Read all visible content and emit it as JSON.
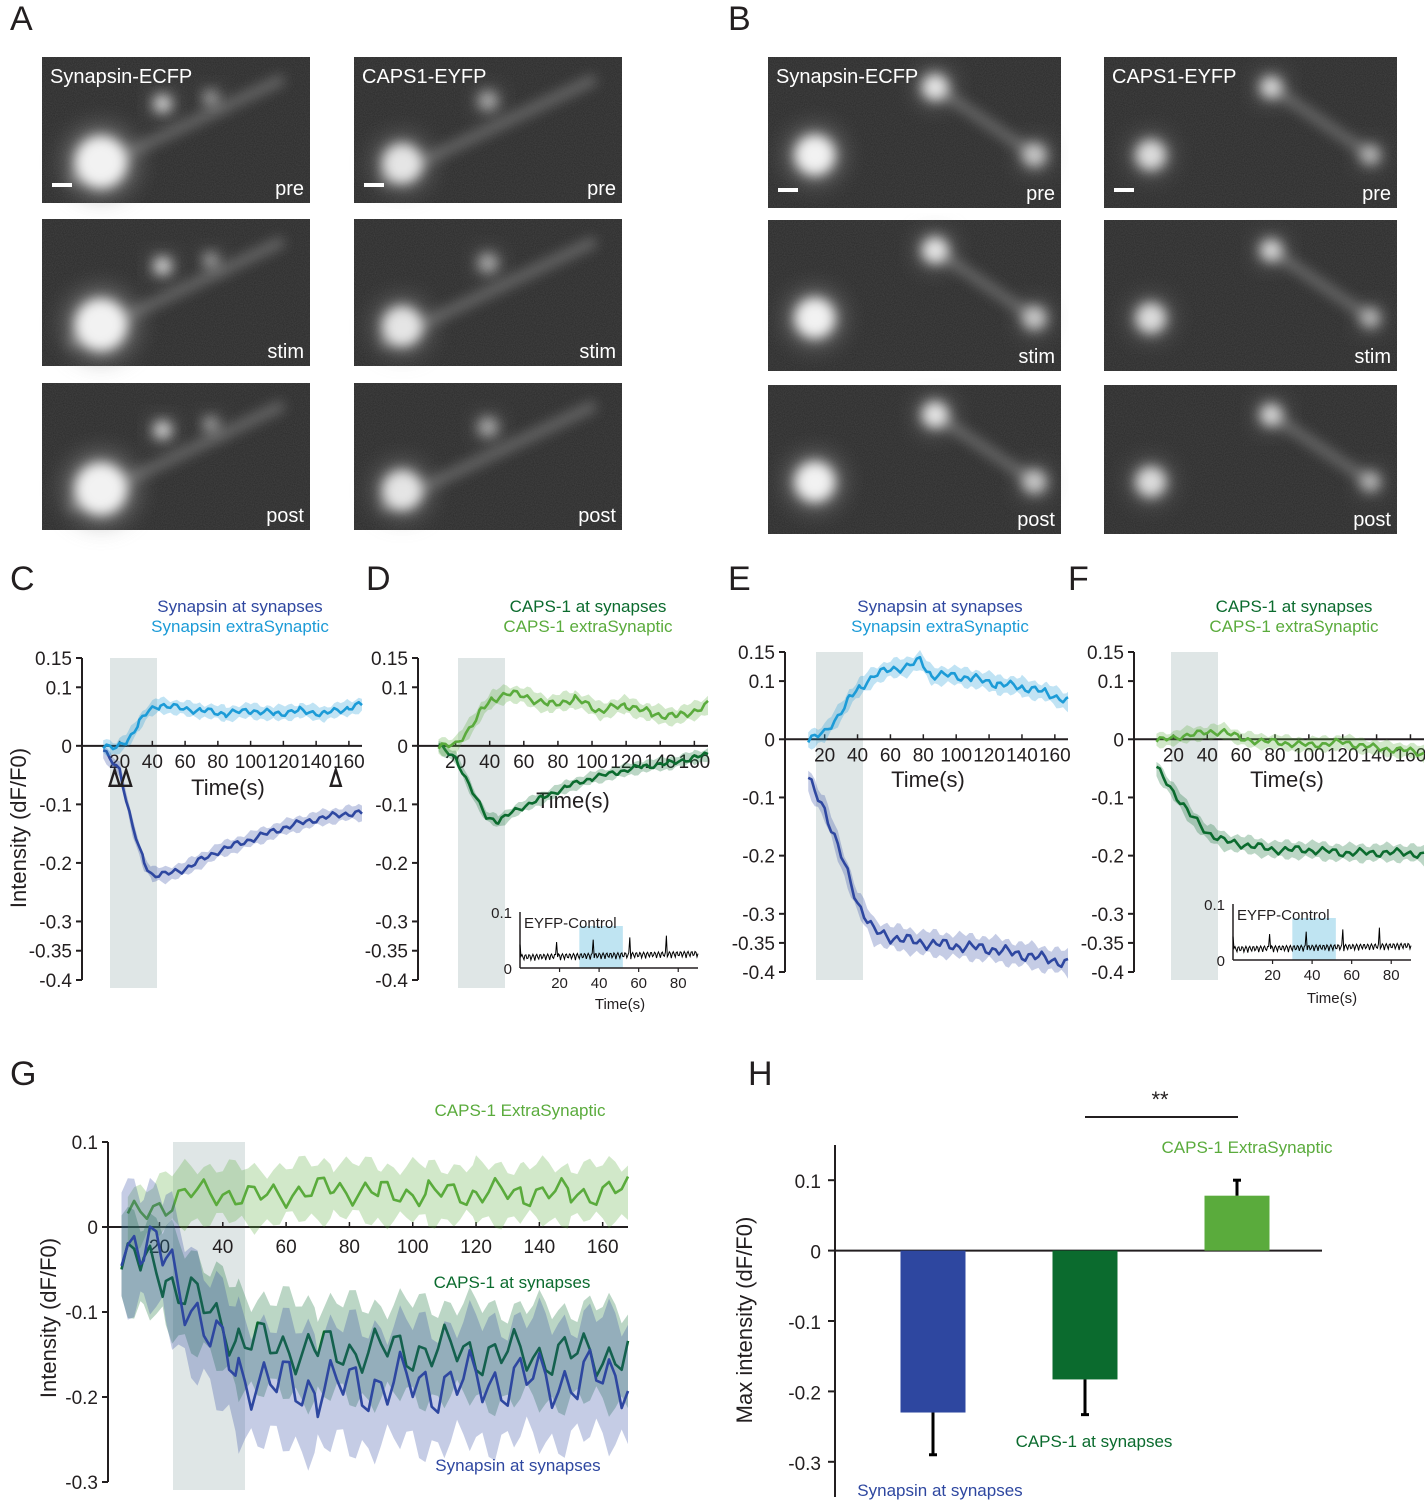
{
  "panel_letters": [
    "A",
    "B",
    "C",
    "D",
    "E",
    "F",
    "G",
    "H"
  ],
  "colors": {
    "syn_at": "#2e47a0",
    "syn_extra": "#1c9bd7",
    "caps_at": "#0b6b2e",
    "caps_extra": "#5aab3c",
    "stim_shade": "#dfe6e6",
    "eyfp_shade": "#bfe4f2",
    "axis": "#231f20"
  },
  "micrographs": {
    "A": {
      "col1_title": "Synapsin-ECFP",
      "col2_title": "CAPS1-EYFP",
      "row_labels": [
        "pre",
        "stim",
        "post"
      ]
    },
    "B": {
      "col1_title": "Synapsin-ECFP",
      "col2_title": "CAPS1-EYFP",
      "row_labels": [
        "pre",
        "stim",
        "post"
      ]
    }
  },
  "chart_data": [
    {
      "panel": "C",
      "type": "line",
      "xlabel": "Time(s)",
      "ylabel": "Intensity (dF/F0)",
      "xlim": [
        5,
        168
      ],
      "ylim": [
        -0.4,
        0.15
      ],
      "xticks": [
        20,
        40,
        60,
        80,
        100,
        120,
        140,
        160
      ],
      "yticks": [
        0.15,
        0.1,
        0,
        -0.1,
        -0.2,
        -0.3,
        -0.35,
        -0.4
      ],
      "stim_window": [
        20,
        48
      ],
      "arrowheads_at": [
        17,
        24,
        152
      ],
      "legend": [
        "Synapsin at synapses",
        "Synapsin extraSynaptic"
      ],
      "series": [
        {
          "name": "Synapsin at synapses",
          "color_key": "syn_at",
          "x": [
            10,
            20,
            28,
            35,
            40,
            48,
            60,
            80,
            100,
            120,
            140,
            160,
            168
          ],
          "y": [
            -0.01,
            -0.04,
            -0.14,
            -0.2,
            -0.22,
            -0.22,
            -0.21,
            -0.18,
            -0.16,
            -0.14,
            -0.125,
            -0.115,
            -0.115
          ],
          "band": 0.012
        },
        {
          "name": "Synapsin extraSynaptic",
          "color_key": "syn_extra",
          "x": [
            10,
            18,
            25,
            32,
            38,
            45,
            55,
            70,
            85,
            100,
            115,
            130,
            145,
            160,
            168
          ],
          "y": [
            0.0,
            -0.005,
            0.01,
            0.04,
            0.06,
            0.07,
            0.065,
            0.06,
            0.055,
            0.06,
            0.055,
            0.06,
            0.055,
            0.065,
            0.07
          ],
          "band": 0.012
        }
      ]
    },
    {
      "panel": "D",
      "type": "line",
      "xlabel": "Time(s)",
      "ylabel": "",
      "xlim": [
        5,
        168
      ],
      "ylim": [
        -0.4,
        0.15
      ],
      "xticks": [
        20,
        40,
        60,
        80,
        100,
        120,
        140,
        160
      ],
      "yticks": [
        0.15,
        0.1,
        0,
        -0.1,
        -0.2,
        -0.3,
        -0.35,
        -0.4
      ],
      "stim_window": [
        20,
        48
      ],
      "legend": [
        "CAPS-1 at synapses",
        "CAPS-1 extraSynaptic"
      ],
      "series": [
        {
          "name": "CAPS-1 at synapses",
          "color_key": "caps_at",
          "x": [
            10,
            20,
            30,
            38,
            45,
            55,
            70,
            85,
            100,
            115,
            130,
            145,
            160,
            168
          ],
          "y": [
            0.0,
            -0.02,
            -0.08,
            -0.12,
            -0.13,
            -0.11,
            -0.09,
            -0.07,
            -0.055,
            -0.045,
            -0.035,
            -0.03,
            -0.02,
            -0.015
          ],
          "band": 0.01
        },
        {
          "name": "CAPS-1 extraSynaptic",
          "color_key": "caps_extra",
          "x": [
            10,
            20,
            28,
            35,
            42,
            50,
            60,
            75,
            90,
            105,
            120,
            135,
            150,
            160,
            168
          ],
          "y": [
            0.0,
            0.0,
            0.03,
            0.06,
            0.08,
            0.09,
            0.085,
            0.07,
            0.08,
            0.06,
            0.07,
            0.055,
            0.05,
            0.06,
            0.07
          ],
          "band": 0.014
        }
      ],
      "inset": {
        "label": "EYFP-Control",
        "xlabel": "Time(s)",
        "xlim": [
          0,
          90
        ],
        "ylim": [
          0,
          0.1
        ],
        "xticks": [
          20,
          40,
          60,
          80
        ],
        "yticks": [
          0,
          0.1
        ],
        "shade": [
          30,
          52
        ]
      }
    },
    {
      "panel": "E",
      "type": "line",
      "xlabel": "Time(s)",
      "ylabel": "",
      "xlim": [
        5,
        168
      ],
      "ylim": [
        -0.4,
        0.15
      ],
      "xticks": [
        20,
        40,
        60,
        80,
        100,
        120,
        140,
        160
      ],
      "yticks": [
        0.15,
        0.1,
        0,
        -0.1,
        -0.2,
        -0.3,
        -0.35,
        -0.4
      ],
      "stim_window": [
        20,
        48
      ],
      "legend": [
        "Synapsin at synapses",
        "Synapsin extraSynaptic"
      ],
      "series": [
        {
          "name": "Synapsin at synapses",
          "color_key": "syn_at",
          "x": [
            10,
            20,
            30,
            40,
            50,
            60,
            80,
            100,
            120,
            140,
            160,
            168
          ],
          "y": [
            -0.07,
            -0.12,
            -0.2,
            -0.28,
            -0.33,
            -0.34,
            -0.35,
            -0.355,
            -0.36,
            -0.37,
            -0.38,
            -0.385
          ],
          "band": 0.02
        },
        {
          "name": "Synapsin extraSynaptic",
          "color_key": "syn_extra",
          "x": [
            10,
            20,
            28,
            35,
            42,
            50,
            60,
            70,
            78,
            85,
            95,
            110,
            125,
            140,
            155,
            168
          ],
          "y": [
            0.0,
            0.01,
            0.04,
            0.07,
            0.09,
            0.11,
            0.12,
            0.125,
            0.135,
            0.11,
            0.11,
            0.105,
            0.095,
            0.09,
            0.08,
            0.065
          ],
          "band": 0.015
        }
      ]
    },
    {
      "panel": "F",
      "type": "line",
      "xlabel": "Time(s)",
      "ylabel": "",
      "xlim": [
        5,
        168
      ],
      "ylim": [
        -0.4,
        0.15
      ],
      "xticks": [
        20,
        40,
        60,
        80,
        100,
        120,
        140,
        160
      ],
      "yticks": [
        0.15,
        0.1,
        0,
        -0.1,
        -0.2,
        -0.3,
        -0.35,
        -0.4
      ],
      "stim_window": [
        20,
        48
      ],
      "legend": [
        "CAPS-1 at synapses",
        "CAPS-1 extraSynaptic"
      ],
      "series": [
        {
          "name": "CAPS-1 at synapses",
          "color_key": "caps_at",
          "x": [
            10,
            20,
            30,
            40,
            50,
            60,
            80,
            100,
            120,
            140,
            160,
            168
          ],
          "y": [
            -0.05,
            -0.09,
            -0.13,
            -0.16,
            -0.175,
            -0.18,
            -0.19,
            -0.19,
            -0.195,
            -0.195,
            -0.195,
            -0.2
          ],
          "band": 0.014
        },
        {
          "name": "CAPS-1 extraSynaptic",
          "color_key": "caps_extra",
          "x": [
            10,
            20,
            30,
            40,
            50,
            60,
            80,
            100,
            120,
            140,
            160,
            168
          ],
          "y": [
            0.0,
            0.0,
            0.01,
            0.01,
            0.015,
            0.0,
            -0.005,
            -0.01,
            -0.005,
            -0.015,
            -0.02,
            -0.025
          ],
          "band": 0.012
        }
      ],
      "inset": {
        "label": "EYFP-Control",
        "xlabel": "Time(s)",
        "xlim": [
          0,
          90
        ],
        "ylim": [
          0,
          0.1
        ],
        "xticks": [
          20,
          40,
          60,
          80
        ],
        "yticks": [
          0,
          0.1
        ],
        "shade": [
          30,
          52
        ]
      }
    },
    {
      "panel": "G",
      "type": "line",
      "xlabel": "",
      "ylabel": "Intensity (dF/F0)",
      "xlim": [
        5,
        168
      ],
      "ylim": [
        -0.3,
        0.1
      ],
      "xticks": [
        20,
        40,
        60,
        80,
        100,
        120,
        140,
        160
      ],
      "yticks": [
        0.1,
        0,
        -0.1,
        -0.2,
        -0.3
      ],
      "stim_window": [
        20,
        44
      ],
      "series": [
        {
          "name": "CAPS-1 ExtraSynaptic",
          "color_key": "caps_extra",
          "x": [
            10,
            20,
            30,
            40,
            50,
            60,
            75,
            90,
            105,
            120,
            135,
            150,
            160,
            168
          ],
          "y": [
            0.01,
            0.025,
            0.04,
            0.04,
            0.035,
            0.04,
            0.045,
            0.04,
            0.04,
            0.04,
            0.04,
            0.04,
            0.04,
            0.045
          ],
          "band": 0.032
        },
        {
          "name": "CAPS-1 at synapses",
          "color_key": "caps_at",
          "x": [
            8,
            15,
            22,
            30,
            38,
            45,
            55,
            70,
            90,
            110,
            130,
            150,
            168
          ],
          "y": [
            -0.03,
            -0.045,
            -0.06,
            -0.08,
            -0.11,
            -0.13,
            -0.14,
            -0.145,
            -0.145,
            -0.145,
            -0.15,
            -0.15,
            -0.15
          ],
          "band": 0.055
        },
        {
          "name": "Synapsin at synapses",
          "color_key": "syn_at",
          "x": [
            8,
            15,
            22,
            30,
            38,
            45,
            55,
            70,
            90,
            110,
            130,
            150,
            168
          ],
          "y": [
            -0.015,
            -0.02,
            -0.04,
            -0.09,
            -0.14,
            -0.17,
            -0.185,
            -0.19,
            -0.185,
            -0.185,
            -0.18,
            -0.18,
            -0.175
          ],
          "band": 0.07
        }
      ],
      "labels": {
        "caps_extra": "CAPS-1 ExtraSynaptic",
        "caps_at": "CAPS-1 at synapses",
        "syn_at": "Synapsin at synapses"
      }
    },
    {
      "panel": "H",
      "type": "bar",
      "ylabel": "Max intensity (dF/F0)",
      "ylim": [
        -0.35,
        0.15
      ],
      "yticks": [
        0.1,
        0,
        -0.1,
        -0.2,
        -0.3
      ],
      "categories": [
        "Synapsin at synapses",
        "CAPS-1 at synapses",
        "CAPS-1 ExtraSynaptic"
      ],
      "values": [
        -0.23,
        -0.183,
        0.078
      ],
      "errors": [
        0.06,
        0.05,
        0.022
      ],
      "color_keys": [
        "syn_at",
        "caps_at",
        "caps_extra"
      ],
      "significance": {
        "label": "**",
        "between": [
          "CAPS-1 at synapses",
          "CAPS-1 ExtraSynaptic"
        ]
      }
    }
  ]
}
